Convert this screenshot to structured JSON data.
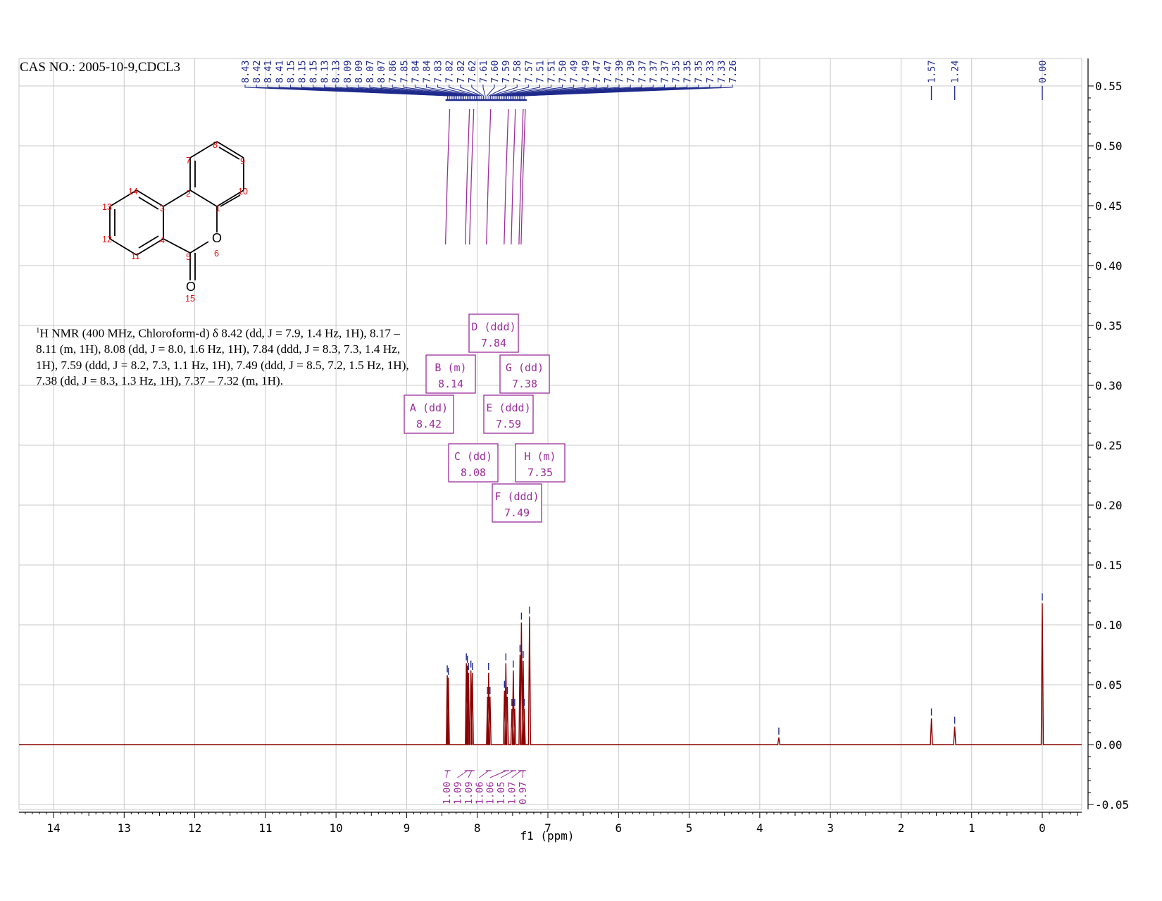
{
  "header": {
    "title": "CAS NO.: 2005-10-9,CDCL3"
  },
  "description": {
    "nucleus_sup": "1",
    "text": "H NMR (400 MHz, Chloroform-d) δ 8.42 (dd, J = 7.9, 1.4 Hz, 1H), 8.17 – 8.11 (m, 1H), 8.08 (dd, J = 8.0, 1.6 Hz, 1H), 7.84 (ddd, J = 8.3, 7.3, 1.4 Hz, 1H), 7.59 (ddd, J = 8.2, 7.3, 1.1 Hz, 1H), 7.49 (ddd, J = 8.5, 7.2, 1.5 Hz, 1H), 7.38 (dd, J = 8.3, 1.3 Hz, 1H), 7.37 – 7.32 (m, 1H)."
  },
  "molecule": {
    "atom_labels": [
      "1",
      "2",
      "3",
      "4",
      "5",
      "6",
      "7",
      "8",
      "9",
      "10",
      "11",
      "12",
      "13",
      "14",
      "15"
    ],
    "hetero": [
      "O",
      "O"
    ]
  },
  "chart_data": {
    "type": "line",
    "title": "CAS NO.: 2005-10-9,CDCL3",
    "xlabel": "f1 (ppm)",
    "ylabel": "",
    "xlim": [
      14.5,
      -0.5
    ],
    "ylim": [
      -0.05,
      0.55
    ],
    "x_reversed": true,
    "grid": true,
    "x_ticks": [
      "14",
      "13",
      "12",
      "11",
      "10",
      "9",
      "8",
      "7",
      "6",
      "5",
      "4",
      "3",
      "2",
      "1",
      "0"
    ],
    "y_ticks": [
      "-0.05",
      "0.00",
      "0.05",
      "0.10",
      "0.15",
      "0.20",
      "0.25",
      "0.30",
      "0.35",
      "0.40",
      "0.45",
      "0.50",
      "0.55"
    ],
    "peaks": [
      {
        "ppm": 8.425,
        "height": 0.058
      },
      {
        "ppm": 8.41,
        "height": 0.056
      },
      {
        "ppm": 8.155,
        "height": 0.068
      },
      {
        "ppm": 8.14,
        "height": 0.066
      },
      {
        "ppm": 8.125,
        "height": 0.06
      },
      {
        "ppm": 8.09,
        "height": 0.062
      },
      {
        "ppm": 8.07,
        "height": 0.06
      },
      {
        "ppm": 7.855,
        "height": 0.04
      },
      {
        "ppm": 7.84,
        "height": 0.06
      },
      {
        "ppm": 7.82,
        "height": 0.04
      },
      {
        "ppm": 7.615,
        "height": 0.045
      },
      {
        "ppm": 7.595,
        "height": 0.068
      },
      {
        "ppm": 7.575,
        "height": 0.04
      },
      {
        "ppm": 7.51,
        "height": 0.03
      },
      {
        "ppm": 7.49,
        "height": 0.062
      },
      {
        "ppm": 7.47,
        "height": 0.03
      },
      {
        "ppm": 7.395,
        "height": 0.075
      },
      {
        "ppm": 7.375,
        "height": 0.102
      },
      {
        "ppm": 7.35,
        "height": 0.07
      },
      {
        "ppm": 7.335,
        "height": 0.03
      },
      {
        "ppm": 7.26,
        "height": 0.107
      },
      {
        "ppm": 3.73,
        "height": 0.006
      },
      {
        "ppm": 1.57,
        "height": 0.022
      },
      {
        "ppm": 1.24,
        "height": 0.015
      },
      {
        "ppm": 0.0,
        "height": 0.118
      }
    ],
    "peak_labels": [
      "8.43",
      "8.42",
      "8.41",
      "8.41",
      "8.15",
      "8.15",
      "8.15",
      "8.13",
      "8.13",
      "8.09",
      "8.09",
      "8.07",
      "8.07",
      "7.86",
      "7.85",
      "7.84",
      "7.84",
      "7.83",
      "7.82",
      "7.82",
      "7.62",
      "7.61",
      "7.60",
      "7.59",
      "7.58",
      "7.57",
      "7.51",
      "7.51",
      "7.50",
      "7.49",
      "7.49",
      "7.47",
      "7.47",
      "7.39",
      "7.39",
      "7.37",
      "7.37",
      "7.37",
      "7.35",
      "7.35",
      "7.35",
      "7.33",
      "7.33",
      "7.26"
    ],
    "isolated_peak_labels": [
      {
        "ppm": 1.57,
        "label": "1.57"
      },
      {
        "ppm": 1.24,
        "label": "1.24"
      },
      {
        "ppm": 0.0,
        "label": "0.00"
      }
    ],
    "label_span_ppm": [
      8.42,
      7.33
    ],
    "multiplets": [
      {
        "letter": "A",
        "type": "dd",
        "shift": "8.42",
        "ppm": 8.42
      },
      {
        "letter": "B",
        "type": "m",
        "shift": "8.14",
        "ppm": 8.14
      },
      {
        "letter": "C",
        "type": "dd",
        "shift": "8.08",
        "ppm": 8.08
      },
      {
        "letter": "D",
        "type": "ddd",
        "shift": "7.84",
        "ppm": 7.84
      },
      {
        "letter": "E",
        "type": "ddd",
        "shift": "7.59",
        "ppm": 7.59
      },
      {
        "letter": "F",
        "type": "ddd",
        "shift": "7.49",
        "ppm": 7.49
      },
      {
        "letter": "G",
        "type": "dd",
        "shift": "7.38",
        "ppm": 7.38
      },
      {
        "letter": "H",
        "type": "m",
        "shift": "7.35",
        "ppm": 7.35
      }
    ],
    "integrals": [
      {
        "ppm": 8.42,
        "value": "1.00"
      },
      {
        "ppm": 8.14,
        "value": "1.09"
      },
      {
        "ppm": 8.08,
        "value": "1.09"
      },
      {
        "ppm": 7.84,
        "value": "1.06"
      },
      {
        "ppm": 7.59,
        "value": "1.06"
      },
      {
        "ppm": 7.49,
        "value": "1.05"
      },
      {
        "ppm": 7.38,
        "value": "1.07"
      },
      {
        "ppm": 7.35,
        "value": "0.97"
      }
    ],
    "colors": {
      "spectrum": "#8b0000",
      "peak_label": "#1f2a8c",
      "multiplet": "#9b2d9b",
      "grid": "#c8c8c8",
      "axis": "#000000"
    }
  }
}
